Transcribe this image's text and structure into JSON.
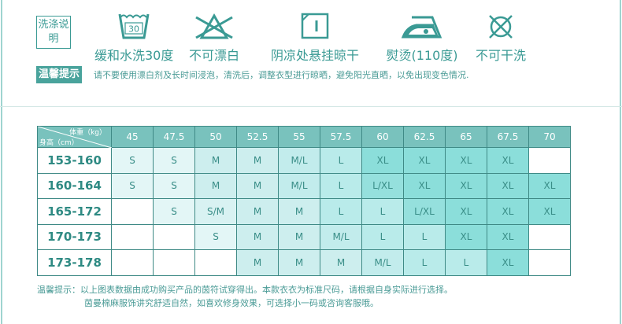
{
  "care": {
    "title": "洗涤说明",
    "items": [
      {
        "icon": "wash-30-icon",
        "label": "缓和水洗30度",
        "temp": "30"
      },
      {
        "icon": "no-bleach-icon",
        "label": "不可漂白"
      },
      {
        "icon": "line-dry-shade-icon",
        "label": "阴凉处悬挂晾干"
      },
      {
        "icon": "iron-icon",
        "label": "熨烫(110度)"
      },
      {
        "icon": "no-dry-clean-icon",
        "label": "不可干洗"
      }
    ]
  },
  "tip": {
    "badge": "温馨提示",
    "text": "请不要使用漂白剂及长时间浸泡，清洗后，调整衣型进行晾晒，避免阳光直晒，以免出现变色情况."
  },
  "size_table": {
    "corner_weight": "体重（kg）",
    "corner_height": "身高（cm）",
    "weights": [
      "45",
      "47.5",
      "50",
      "52.5",
      "55",
      "57.5",
      "60",
      "62.5",
      "65",
      "67.5",
      "70"
    ],
    "rows": [
      {
        "height": "153-160",
        "sizes": [
          "S",
          "S",
          "M",
          "M",
          "M/L",
          "L",
          "XL",
          "XL",
          "XL",
          "XL",
          ""
        ]
      },
      {
        "height": "160-164",
        "sizes": [
          "S",
          "S",
          "M",
          "M",
          "M/L",
          "L",
          "L/XL",
          "XL",
          "XL",
          "XL",
          "XL"
        ]
      },
      {
        "height": "165-172",
        "sizes": [
          "",
          "S",
          "S/M",
          "M",
          "M",
          "L",
          "L",
          "L/XL",
          "XL",
          "XL",
          "XL"
        ]
      },
      {
        "height": "170-173",
        "sizes": [
          "",
          "",
          "S",
          "M",
          "M",
          "M/L",
          "L",
          "L",
          "XL",
          "XL",
          ""
        ]
      },
      {
        "height": "173-178",
        "sizes": [
          "",
          "",
          "",
          "M",
          "M",
          "M",
          "M/L",
          "L",
          "L",
          "XL",
          ""
        ]
      }
    ],
    "size_colors": {
      "S": "#e3f6f6",
      "S/M": "#d8f2f2",
      "M": "#cdeeee",
      "M/L": "#c2ecec",
      "L": "#b9ebea",
      "L/XL": "#95e0dd",
      "XL": "#8bdeda",
      "": "#ffffff"
    }
  },
  "footer": {
    "line1": "温馨提示：以上图表数据由成功购买产品的茵符试穿得出。本款衣衣为标准尺码，请根据自身实际进行选择。",
    "line2": "茵曼棉麻服饰讲究舒适自然，如喜欢修身效果，可选择小一码或咨询客服哦。"
  }
}
